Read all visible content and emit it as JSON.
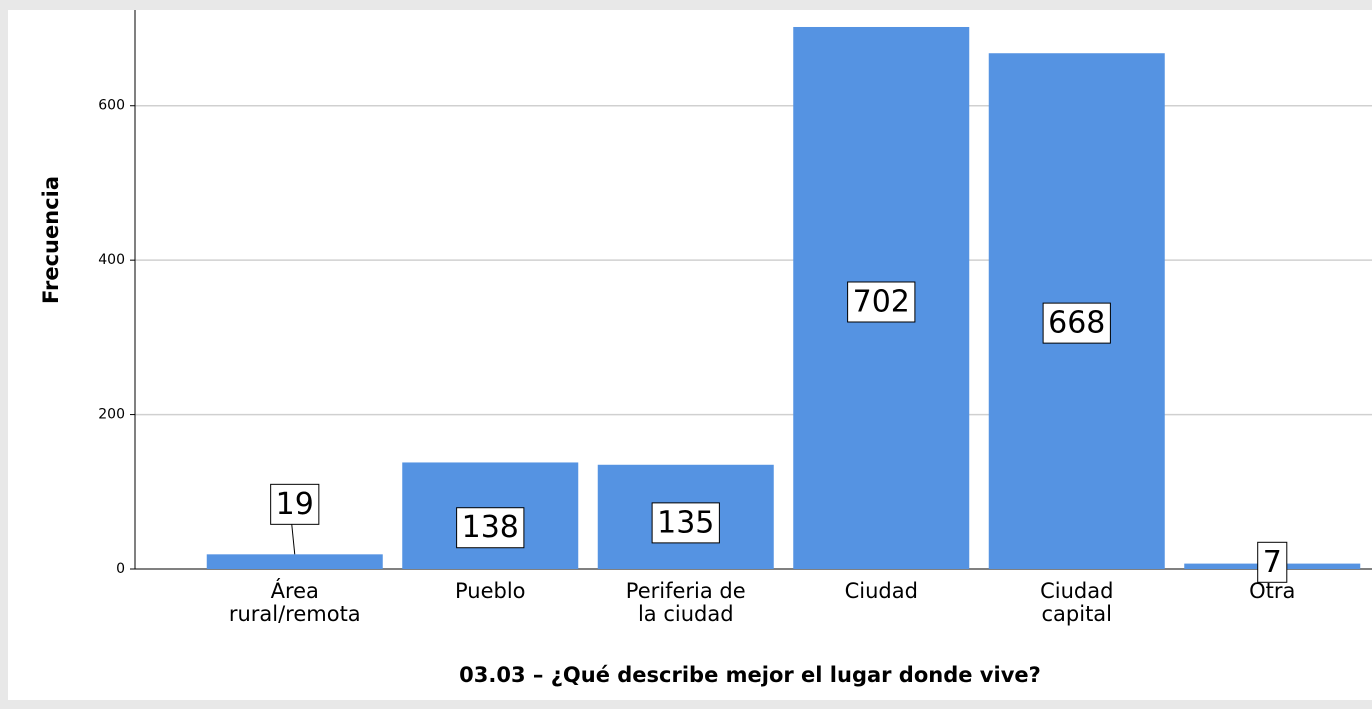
{
  "chart_data": {
    "type": "bar",
    "x_label": "03.03 – ¿Qué describe mejor el lugar donde vive?",
    "y_label": "Frecuencia",
    "categories": [
      "Área\nrural/remota",
      "Pueblo",
      "Periferia de\nla ciudad",
      "Ciudad",
      "Ciudad\ncapital",
      "Otra"
    ],
    "values": [
      19,
      138,
      135,
      702,
      668,
      7
    ],
    "color": "#5593e2",
    "ylim": [
      0,
      724
    ],
    "yticks": [
      0,
      200,
      400,
      600
    ],
    "grid": true
  }
}
